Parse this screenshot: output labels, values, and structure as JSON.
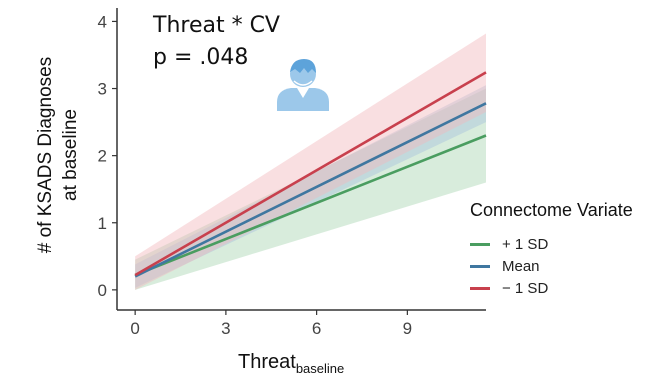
{
  "annotation": {
    "title": "Threat * CV",
    "pvalue": "p = .048",
    "icon": "person-icon"
  },
  "axis_labels": {
    "y_line1": "# of KSADS Diagnoses",
    "y_line2": "at baseline",
    "x_main": "Threat",
    "x_sub": "baseline"
  },
  "chart_data": {
    "type": "line",
    "x": [
      0,
      11.6
    ],
    "xlim": [
      -0.6,
      11.6
    ],
    "ylim": [
      -0.3,
      4.2
    ],
    "x_ticks": [
      0,
      3,
      6,
      9
    ],
    "y_ticks": [
      0,
      1,
      2,
      3,
      4
    ],
    "grid": false,
    "legend_title": "Connectome Variate",
    "legend_position": "right",
    "series": [
      {
        "name": "+ 1 SD",
        "color": "#4a9d60",
        "band_color": "#a9d4b1",
        "values": [
          0.22,
          2.3
        ],
        "lower": [
          0.0,
          1.6
        ],
        "upper": [
          0.45,
          3.0
        ]
      },
      {
        "name": "Mean",
        "color": "#3f77a0",
        "band_color": "#a9c4dc",
        "values": [
          0.2,
          2.78
        ],
        "lower": [
          0.03,
          2.5
        ],
        "upper": [
          0.38,
          3.05
        ]
      },
      {
        "name": "− 1 SD",
        "color": "#c8404d",
        "band_color": "#f2b9bd",
        "values": [
          0.22,
          3.24
        ],
        "lower": [
          0.0,
          2.65
        ],
        "upper": [
          0.5,
          3.82
        ]
      }
    ]
  }
}
